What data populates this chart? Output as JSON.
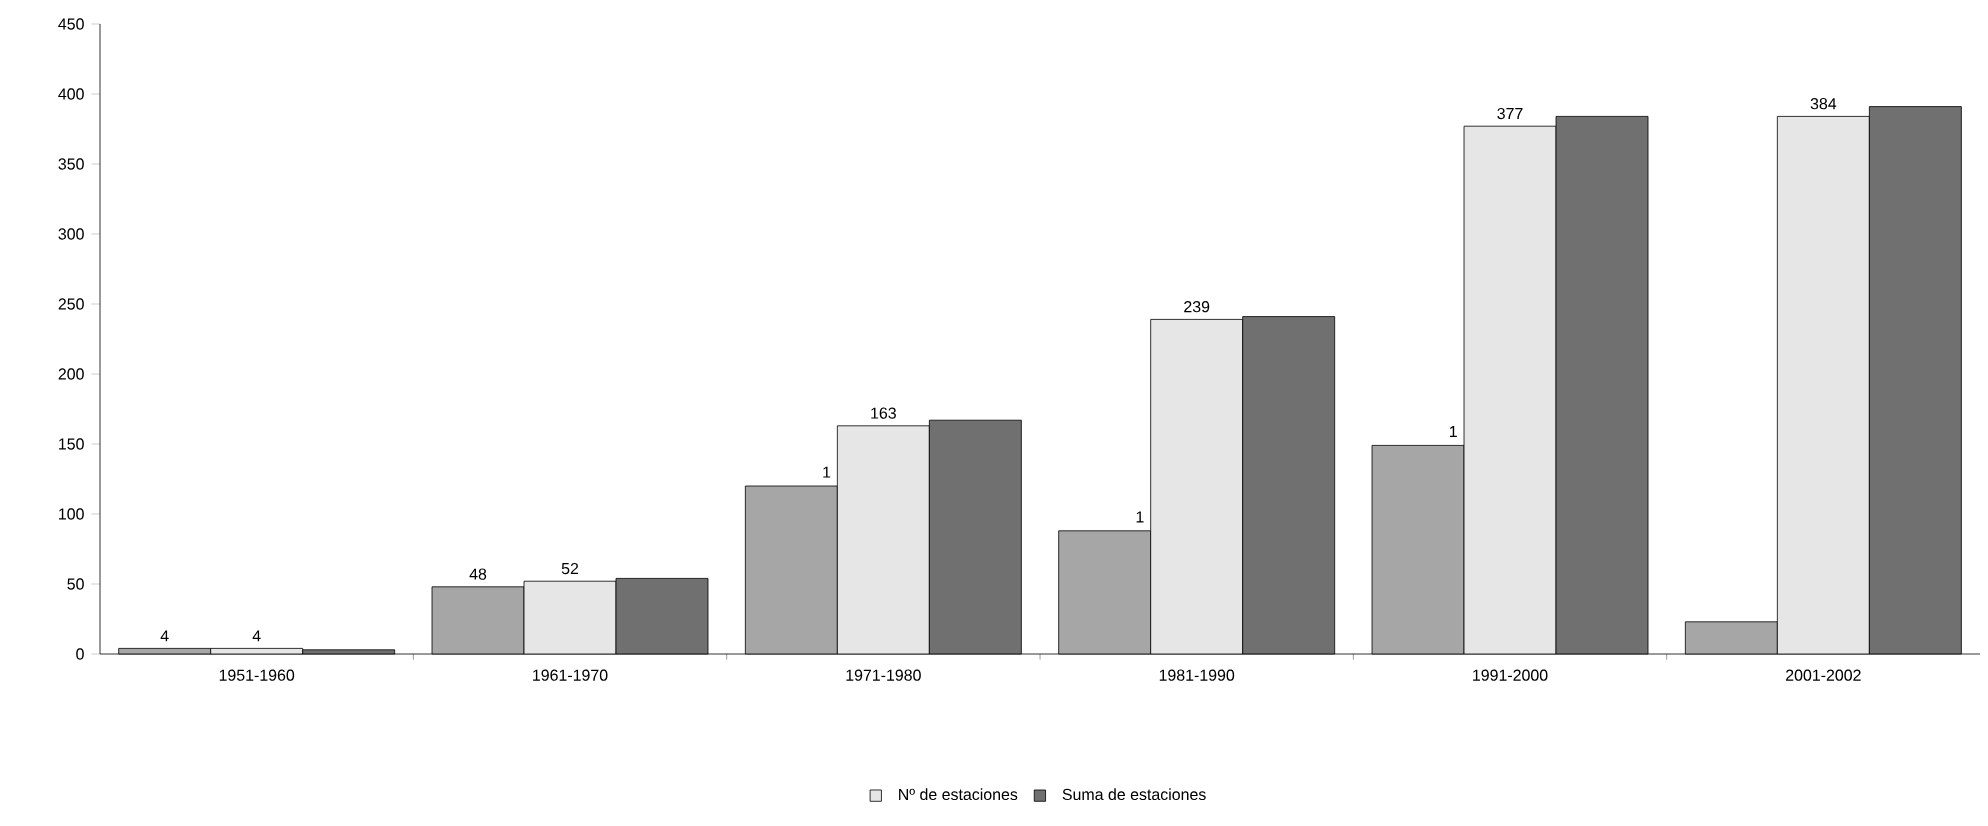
{
  "chart_data": {
    "type": "bar",
    "categories": [
      "1951-1960",
      "1961-1970",
      "1971-1980",
      "1981-1990",
      "1991-2000",
      "2001-2002"
    ],
    "series": [
      {
        "color": "#a6a6a6",
        "values": [
          4,
          48,
          120,
          88,
          149,
          23
        ],
        "value_labels": [
          "4",
          "48",
          null,
          null,
          null,
          null
        ]
      },
      {
        "name": "Nº de estaciones",
        "color": "#e6e6e6",
        "values": [
          4,
          52,
          163,
          239,
          377,
          384
        ],
        "value_labels": [
          "4",
          "52",
          "163",
          "239",
          "377",
          "384"
        ]
      },
      {
        "name": "Suma de estaciones",
        "color": "#707070",
        "values": [
          3,
          54,
          167,
          241,
          384,
          391
        ]
      }
    ],
    "annotations": [
      "1",
      "1",
      "1"
    ],
    "ylim": [
      0,
      450
    ],
    "yticks": [
      0,
      50,
      100,
      150,
      200,
      250,
      300,
      350,
      400,
      450
    ],
    "grid": false,
    "legend": "bottom"
  }
}
